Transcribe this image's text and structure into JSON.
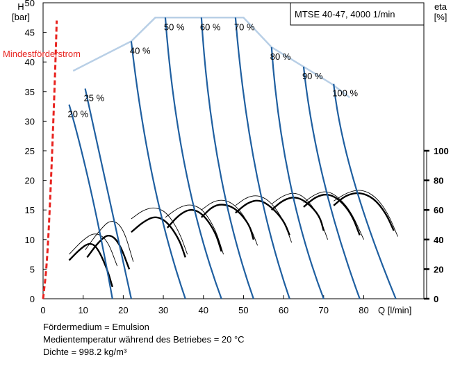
{
  "chart_data": {
    "type": "line",
    "title": "MTSE 40-47, 4000 1/min",
    "y_left_label": "H\n[bar]",
    "y_right_label": "eta\n[%]",
    "x_label": "Q [l/min]",
    "xlim": [
      0,
      95
    ],
    "ylim": [
      0,
      50
    ],
    "x_ticks": [
      "0",
      "10",
      "20",
      "30",
      "40",
      "50",
      "60",
      "70",
      "80"
    ],
    "y_ticks": [
      "0",
      "5",
      "10",
      "15",
      "20",
      "25",
      "30",
      "35",
      "40",
      "45",
      "50"
    ],
    "eta_ticks": [
      "0",
      "20",
      "40",
      "60",
      "80",
      "100"
    ],
    "eta_scale": {
      "zero_at_h": 0,
      "hundred_at_h": 25
    },
    "min_flow": {
      "label": "Mindestförderstrom",
      "color": "#e8231f",
      "points": [
        [
          0,
          0
        ],
        [
          1,
          6
        ],
        [
          2,
          20
        ],
        [
          3,
          38
        ],
        [
          3.4,
          47
        ]
      ]
    },
    "envelope": {
      "color": "#b8cfe6",
      "points": [
        [
          7.5,
          38.5
        ],
        [
          22,
          43.5
        ],
        [
          28,
          47.5
        ],
        [
          50,
          47.5
        ],
        [
          57,
          42.5
        ],
        [
          65,
          39.2
        ],
        [
          72,
          36.3
        ],
        [
          76.5,
          34
        ]
      ]
    },
    "head_curves": [
      {
        "label": "20 %",
        "color": "#1f5fa0",
        "points": [
          [
            6.5,
            32.8
          ],
          [
            12,
            18
          ],
          [
            17.3,
            0
          ]
        ]
      },
      {
        "label": "25 %",
        "color": "#1f5fa0",
        "points": [
          [
            10.5,
            35.5
          ],
          [
            15.5,
            20
          ],
          [
            22,
            0
          ]
        ]
      },
      {
        "label": "40 %",
        "color": "#1f5fa0",
        "points": [
          [
            22,
            43.5
          ],
          [
            27.5,
            20
          ],
          [
            35.5,
            0
          ]
        ]
      },
      {
        "label": "50 %",
        "color": "#1f5fa0",
        "points": [
          [
            30.5,
            47.5
          ],
          [
            35.5,
            22
          ],
          [
            44.5,
            0
          ]
        ]
      },
      {
        "label": "60 %",
        "color": "#1f5fa0",
        "points": [
          [
            39.5,
            47.5
          ],
          [
            44,
            22
          ],
          [
            52.5,
            0
          ]
        ]
      },
      {
        "label": "70 %",
        "color": "#1f5fa0",
        "points": [
          [
            48,
            47.5
          ],
          [
            53,
            22
          ],
          [
            61.5,
            0
          ]
        ]
      },
      {
        "label": "80 %",
        "color": "#1f5fa0",
        "points": [
          [
            57,
            42.5
          ],
          [
            61.5,
            20
          ],
          [
            70,
            0
          ]
        ]
      },
      {
        "label": "90 %",
        "color": "#1f5fa0",
        "points": [
          [
            65,
            39.2
          ],
          [
            70,
            20
          ],
          [
            79,
            0
          ]
        ]
      },
      {
        "label": "100 %",
        "color": "#1f5fa0",
        "points": [
          [
            72.5,
            36.3
          ],
          [
            77.5,
            20
          ],
          [
            88,
            0
          ]
        ]
      }
    ],
    "eta_thick_curves": [
      {
        "label": "20 %",
        "x": [
          6.5,
          9,
          11.5,
          13.5,
          16,
          17.3
        ],
        "eta": [
          26,
          33,
          38,
          35,
          20,
          8
        ]
      },
      {
        "label": "25 %",
        "x": [
          11,
          14,
          16.5,
          19,
          21.5
        ],
        "eta": [
          28,
          39,
          44,
          38,
          20
        ]
      },
      {
        "label": "40 %",
        "x": [
          22,
          25,
          28,
          31,
          34,
          35.5
        ],
        "eta": [
          45,
          52,
          56,
          52,
          40,
          28
        ]
      },
      {
        "label": "50 %",
        "x": [
          31,
          34,
          37,
          40,
          43,
          44.5
        ],
        "eta": [
          48,
          57,
          61,
          57,
          45,
          32
        ]
      },
      {
        "label": "60 %",
        "x": [
          39.5,
          42.5,
          45.5,
          48.5,
          51.5,
          52.5
        ],
        "eta": [
          55,
          63,
          64,
          60,
          50,
          40
        ]
      },
      {
        "label": "70 %",
        "x": [
          48,
          51,
          54,
          57,
          60,
          61.5
        ],
        "eta": [
          58,
          65,
          67,
          62,
          53,
          43
        ]
      },
      {
        "label": "80 %",
        "x": [
          57,
          60,
          63,
          66,
          69,
          70
        ],
        "eta": [
          60,
          67,
          69,
          65,
          56,
          46
        ]
      },
      {
        "label": "90 %",
        "x": [
          65,
          68,
          71,
          74,
          77,
          79
        ],
        "eta": [
          62,
          69,
          71,
          67,
          57,
          43
        ]
      },
      {
        "label": "100 %",
        "x": [
          72.5,
          75.5,
          79,
          82.5,
          85.5,
          87.5
        ],
        "eta": [
          63,
          70,
          72,
          68,
          58,
          46
        ]
      }
    ],
    "eta_thin_curves": [
      {
        "label": "20 %",
        "x": [
          6.5,
          10,
          13,
          16,
          18.5
        ],
        "eta": [
          30,
          40,
          45,
          40,
          22
        ]
      },
      {
        "label": "25 %",
        "x": [
          10.5,
          14,
          17,
          20,
          22.5
        ],
        "eta": [
          33,
          46,
          54,
          48,
          25
        ]
      },
      {
        "label": "40 %",
        "x": [
          22,
          25,
          28,
          31,
          34,
          36
        ],
        "eta": [
          54,
          60,
          62,
          58,
          45,
          30
        ]
      },
      {
        "label": "50 %",
        "x": [
          30.5,
          34,
          37,
          40,
          43,
          45
        ],
        "eta": [
          55,
          62,
          64,
          60,
          47,
          30
        ]
      },
      {
        "label": "60 %",
        "x": [
          39.5,
          42.5,
          45.5,
          48.5,
          51.5,
          53.5
        ],
        "eta": [
          60,
          66,
          67,
          62,
          50,
          36
        ]
      },
      {
        "label": "70 %",
        "x": [
          48,
          51,
          54,
          57,
          60,
          62
        ],
        "eta": [
          63,
          69,
          70,
          65,
          53,
          38
        ]
      },
      {
        "label": "80 %",
        "x": [
          57,
          60,
          63,
          66,
          69,
          71
        ],
        "eta": [
          64,
          70,
          72,
          67,
          55,
          40
        ]
      },
      {
        "label": "90 %",
        "x": [
          65,
          68,
          71,
          74,
          77,
          80
        ],
        "eta": [
          65,
          71,
          73,
          68,
          58,
          40
        ]
      },
      {
        "label": "100 %",
        "x": [
          72.5,
          76,
          79.5,
          83,
          86,
          88.5
        ],
        "eta": [
          66,
          72,
          74,
          69,
          58,
          42
        ]
      }
    ]
  },
  "notes": [
    "Fördermedium = Emulsion",
    "Medientemperatur während des Betriebes = 20 °C",
    "Dichte = 998.2 kg/m³"
  ]
}
